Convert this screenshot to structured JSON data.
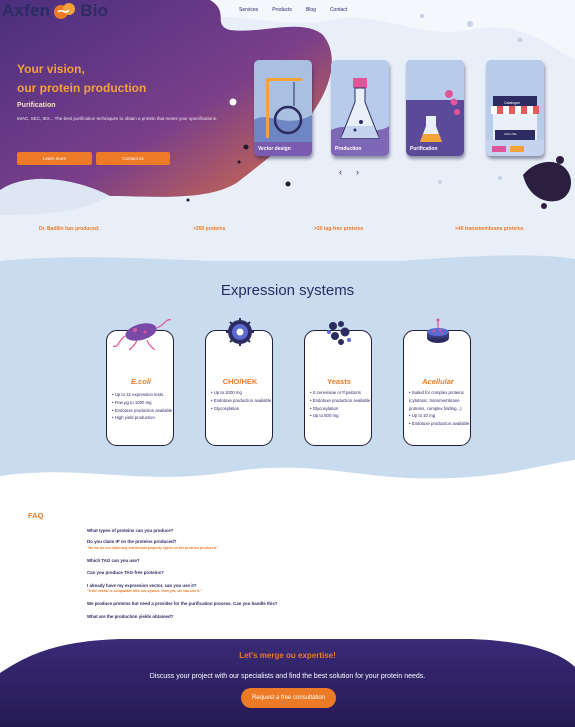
{
  "brand": {
    "name_left": "Axfen",
    "name_right": "Bio"
  },
  "nav": [
    "Services",
    "Products",
    "Blog",
    "Contact"
  ],
  "hero": {
    "title_line1": "Your vision,",
    "title_line2": "our protein production",
    "subtitle": "Purification",
    "description": "IMAC, SEC, IEX... The best purification techniques to obtain a protein that meets your specifications.",
    "learn_more": "Learn more",
    "contact_us": "Contact us",
    "cards": [
      "Vector design",
      "Production",
      "Purification",
      ""
    ],
    "catalogue_sign": "Catalogue",
    "catalogue_brand": "Axfen Bio",
    "prev_arrow": "‹",
    "next_arrow": "›"
  },
  "stats": [
    "Dr. Badillo has produced:",
    ">350 proteins",
    ">30 tag-free proteins",
    ">40 transmembrane proteins"
  ],
  "expression": {
    "title": "Expression systems",
    "systems": [
      {
        "name": "E.coli",
        "features": [
          "Up to 32 expression tests",
          "Few µg to 1000 mg",
          "Endotoxe production available",
          "High yield production"
        ]
      },
      {
        "name": "CHO/HEK",
        "features": [
          "Up to 1000 mg",
          "Endotoxe production available",
          "Glycosylation"
        ]
      },
      {
        "name": "Yeasts",
        "features": [
          "S.cerevisiae or P.pastoris",
          "Endotoxe production available",
          "Glycosylation",
          "Up to 500 mg"
        ]
      },
      {
        "name": "Acellular",
        "features": [
          "Suited for complex proteins (cytotoxic, transmembrane proteins, complex folding...)",
          "Up to 10 mg",
          "Endotoxe production available"
        ]
      }
    ]
  },
  "faq": {
    "title": "FAQ",
    "items": [
      {
        "q": "What types of proteins can you produce?",
        "a": ""
      },
      {
        "q": "Do you claim IP on the proteins produced?",
        "a": "\"No we do not claim any intellectual property rights on the proteins produced.\""
      },
      {
        "q": "Which TAG can you use?",
        "a": ""
      },
      {
        "q": "Can you produce TAG-free proteins?",
        "a": ""
      },
      {
        "q": "I already have my expression vector, can you use it?",
        "a": "\"If the vector is compatible with our system, then yes, we can use it.\""
      },
      {
        "q": "We produce proteins but need a provider for the purification process. Can you handle this?",
        "a": ""
      },
      {
        "q": "What are the production yields obtained?",
        "a": ""
      }
    ]
  },
  "footer": {
    "title": "Let's merge ou expertise!",
    "text": "Discuss your project with our specialists and find the best solution for your protein needs.",
    "button": "Request a free consultation"
  },
  "colors": {
    "orange": "#ec7a26",
    "navy": "#2c2b62",
    "light_blue": "#c9dbee",
    "purple": "#5a3f8e"
  }
}
